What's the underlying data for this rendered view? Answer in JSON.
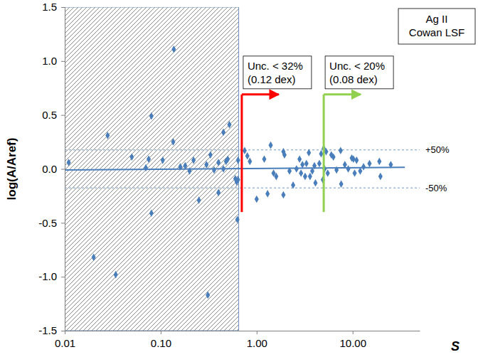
{
  "chart_data": {
    "type": "scatter",
    "log": "x",
    "xlabel": "S",
    "ylabel": "log(A/Aref)",
    "xlim": [
      0.01,
      50
    ],
    "ylim": [
      -1.5,
      1.5
    ],
    "xticks": [
      0.01,
      {
        "value": 0.1,
        "label": "0.10"
      },
      {
        "value": 1,
        "label": "1.00"
      },
      {
        "value": 10,
        "label": "10.00"
      }
    ],
    "yticks": [
      -1.5,
      {
        "value": -1,
        "label": "-1.0"
      },
      -0.5,
      {
        "value": 0,
        "label": "0.0"
      },
      0.5,
      {
        "value": 1,
        "label": "1.0"
      },
      1.5
    ],
    "color": "#4a7ebb",
    "marker": "diamond",
    "x": [
      0.011,
      0.02,
      0.028,
      0.034,
      0.05,
      0.07,
      0.075,
      0.08,
      0.08,
      0.105,
      0.135,
      0.137,
      0.16,
      0.18,
      0.2,
      0.22,
      0.25,
      0.3,
      0.31,
      0.33,
      0.36,
      0.4,
      0.4,
      0.45,
      0.45,
      0.48,
      0.5,
      0.52,
      0.6,
      0.62,
      0.63,
      0.64,
      0.64,
      0.75,
      0.8,
      0.85,
      1.0,
      1.2,
      1.3,
      1.4,
      1.5,
      1.6,
      1.9,
      1.95,
      1.9,
      2.2,
      2.4,
      2.6,
      2.8,
      2.9,
      3.0,
      3.2,
      3.3,
      3.5,
      3.6,
      3.8,
      4.0,
      4.1,
      4.5,
      4.7,
      4.9,
      5.0,
      5.1,
      5.3,
      5.5,
      6.0,
      6.3,
      6.8,
      7.5,
      7.6,
      8.3,
      9.0,
      9.8,
      10.2,
      10.5,
      11,
      12,
      13,
      15,
      19,
      19.5,
      25
    ],
    "values": [
      0.06,
      -0.82,
      0.31,
      -0.98,
      0.11,
      0.01,
      0.09,
      0.49,
      -0.41,
      0.08,
      0.25,
      1.11,
      0.02,
      0.03,
      -0.02,
      0.08,
      -0.29,
      0.04,
      -1.17,
      0.13,
      -0.01,
      -0.22,
      0.06,
      0.0,
      0.34,
      0.07,
      0.09,
      0.41,
      -0.09,
      -0.12,
      -0.47,
      -0.1,
      0.08,
      0.17,
      0.12,
      0.07,
      -0.28,
      0.09,
      -0.23,
      0.22,
      -0.04,
      -0.07,
      0.16,
      0.13,
      -0.24,
      -0.02,
      -0.15,
      0.0,
      0.09,
      -0.04,
      0.04,
      -0.07,
      0.05,
      0.15,
      -0.07,
      -0.02,
      0.03,
      -0.13,
      0.05,
      0.14,
      -0.1,
      0.19,
      0.0,
      0.16,
      -0.04,
      0.13,
      0.11,
      -0.01,
      0.17,
      -0.14,
      0.04,
      0.0,
      0.1,
      0.09,
      -0.04,
      0.08,
      -0.02,
      0.02,
      0.05,
      0.07,
      -0.07,
      0.04
    ],
    "fit": {
      "x": [
        0.01,
        35
      ],
      "y": [
        -0.01,
        0.015
      ]
    },
    "reference_lines": [
      {
        "y": 0.176,
        "label": "+50%"
      },
      {
        "y": -0.176,
        "label": "-50%"
      }
    ],
    "excluded_region": {
      "x": [
        0.01,
        0.65
      ]
    },
    "thresholds": [
      {
        "x": 0.7,
        "y": [
          -0.4,
          0.69
        ],
        "color": "#ff0000",
        "lines": [
          "Unc. < 32%",
          "(0.12 dex)"
        ]
      },
      {
        "x": 5,
        "y": [
          -0.4,
          0.69
        ],
        "color": "#92d050",
        "lines": [
          "Unc. < 20%",
          "(0.08 dex)"
        ]
      }
    ],
    "text_box": [
      "Ag II",
      "Cowan LSF"
    ]
  }
}
